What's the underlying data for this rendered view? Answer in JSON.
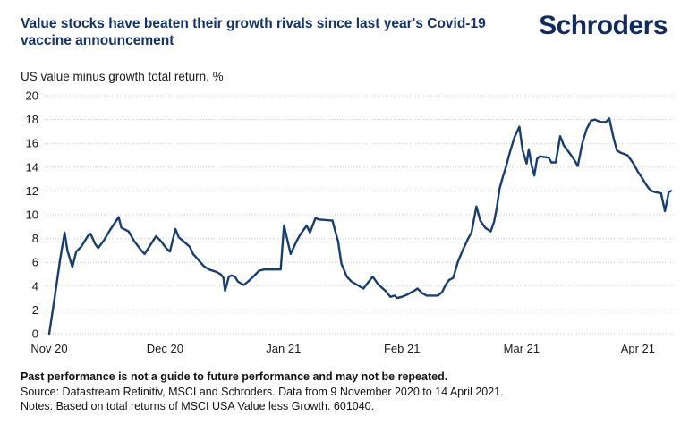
{
  "header": {
    "title": "Value stocks have beaten their growth rivals since last year's Covid-19 vaccine announcement",
    "logo_text": "Schroders"
  },
  "chart": {
    "subtitle": "US value minus growth total return, %"
  },
  "footer": {
    "line1": "Past performance is not a guide to future performance and may not be repeated.",
    "line2": "Source: Datastream Refinitiv, MSCI and Schroders. Data from 9 November 2020 to 14 April 2021.",
    "line3": "Notes: Based on total returns of MSCI USA Value less Growth. 601040."
  },
  "colors": {
    "brand_navy": "#143264",
    "line": "#173e6e",
    "grid": "#c9c9c9",
    "tick_text": "#1a1a1a"
  },
  "chart_data": {
    "type": "line",
    "title": "Value stocks have beaten their growth rivals since last year's Covid-19 vaccine announcement",
    "ylabel": "US value minus growth total return, %",
    "xlabel": "",
    "x_unit": "trading days since 9 November 2020 (values estimated from plot)",
    "ylim": [
      0,
      20
    ],
    "y_ticks": [
      0,
      2,
      4,
      6,
      8,
      10,
      12,
      14,
      16,
      18,
      20
    ],
    "x_ticks": [
      {
        "day": 0,
        "label": "Nov 20"
      },
      {
        "day": 21,
        "label": "Dec 20"
      },
      {
        "day": 42.5,
        "label": "Jan 21"
      },
      {
        "day": 64,
        "label": "Feb 21"
      },
      {
        "day": 85.7,
        "label": "Mar 21"
      },
      {
        "day": 106.8,
        "label": "Apr 21"
      }
    ],
    "grid": "horizontal-dotted",
    "legend": "none",
    "series": [
      {
        "name": "US value minus growth total return, %",
        "color": "#173e6e",
        "points": [
          [
            0,
            0
          ],
          [
            1,
            3.1
          ],
          [
            2,
            6.3
          ],
          [
            2.8,
            8.5
          ],
          [
            3.3,
            7.0
          ],
          [
            4.2,
            5.6
          ],
          [
            4.9,
            6.9
          ],
          [
            5.8,
            7.3
          ],
          [
            7,
            8.2
          ],
          [
            7.5,
            8.4
          ],
          [
            8.4,
            7.5
          ],
          [
            8.9,
            7.2
          ],
          [
            10,
            7.9
          ],
          [
            11,
            8.7
          ],
          [
            12.6,
            9.8
          ],
          [
            13.1,
            8.9
          ],
          [
            14.4,
            8.6
          ],
          [
            15.4,
            7.8
          ],
          [
            16.7,
            7.0
          ],
          [
            17.3,
            6.7
          ],
          [
            18,
            7.2
          ],
          [
            19.4,
            8.2
          ],
          [
            20.4,
            7.7
          ],
          [
            21.2,
            7.2
          ],
          [
            21.9,
            6.9
          ],
          [
            22.9,
            8.8
          ],
          [
            23.5,
            8.1
          ],
          [
            24.3,
            7.8
          ],
          [
            25.5,
            7.3
          ],
          [
            26.1,
            6.7
          ],
          [
            26.7,
            6.4
          ],
          [
            28,
            5.7
          ],
          [
            29,
            5.4
          ],
          [
            30.3,
            5.2
          ],
          [
            31.1,
            5.0
          ],
          [
            31.6,
            4.7
          ],
          [
            31.9,
            3.6
          ],
          [
            32.6,
            4.8
          ],
          [
            33.1,
            4.9
          ],
          [
            33.7,
            4.8
          ],
          [
            34.2,
            4.4
          ],
          [
            34.9,
            4.2
          ],
          [
            35.3,
            4.1
          ],
          [
            36.1,
            4.4
          ],
          [
            36.8,
            4.7
          ],
          [
            38.1,
            5.3
          ],
          [
            39,
            5.4
          ],
          [
            42,
            5.4
          ],
          [
            42.6,
            9.1
          ],
          [
            43.8,
            6.7
          ],
          [
            44.9,
            7.8
          ],
          [
            45.5,
            8.3
          ],
          [
            46.7,
            9.1
          ],
          [
            47.3,
            8.5
          ],
          [
            48.3,
            9.7
          ],
          [
            49,
            9.6
          ],
          [
            51.4,
            9.5
          ],
          [
            51.9,
            8.6
          ],
          [
            52.4,
            7.8
          ],
          [
            53,
            5.9
          ],
          [
            54,
            4.8
          ],
          [
            54.8,
            4.4
          ],
          [
            55.9,
            4.1
          ],
          [
            57,
            3.8
          ],
          [
            58,
            4.4
          ],
          [
            58.7,
            4.8
          ],
          [
            59.6,
            4.2
          ],
          [
            60.3,
            3.9
          ],
          [
            61,
            3.6
          ],
          [
            61.9,
            3.1
          ],
          [
            62.7,
            3.2
          ],
          [
            63.1,
            3.0
          ],
          [
            64,
            3.1
          ],
          [
            65,
            3.3
          ],
          [
            66.2,
            3.6
          ],
          [
            66.8,
            3.8
          ],
          [
            67.7,
            3.4
          ],
          [
            68.5,
            3.2
          ],
          [
            70.5,
            3.2
          ],
          [
            71.3,
            3.5
          ],
          [
            71.9,
            4.1
          ],
          [
            72.5,
            4.5
          ],
          [
            73.3,
            4.7
          ],
          [
            74.1,
            6.0
          ],
          [
            75,
            7.0
          ],
          [
            76,
            8.0
          ],
          [
            76.6,
            8.5
          ],
          [
            77.5,
            10.7
          ],
          [
            78.2,
            9.5
          ],
          [
            79.1,
            8.9
          ],
          [
            80.1,
            8.6
          ],
          [
            80.7,
            9.4
          ],
          [
            81.2,
            10.6
          ],
          [
            81.7,
            12.2
          ],
          [
            82.3,
            13.2
          ],
          [
            82.8,
            13.9
          ],
          [
            83.6,
            15.3
          ],
          [
            84.4,
            16.5
          ],
          [
            85.3,
            17.4
          ],
          [
            85.9,
            15.4
          ],
          [
            86.6,
            14.3
          ],
          [
            87,
            15.5
          ],
          [
            87.5,
            14.2
          ],
          [
            88,
            13.3
          ],
          [
            88.5,
            14.7
          ],
          [
            89,
            14.9
          ],
          [
            90.6,
            14.8
          ],
          [
            91.1,
            14.4
          ],
          [
            91.9,
            14.4
          ],
          [
            92.7,
            16.6
          ],
          [
            93.4,
            15.8
          ],
          [
            94.2,
            15.3
          ],
          [
            95,
            14.8
          ],
          [
            95.9,
            14.1
          ],
          [
            96.7,
            16.0
          ],
          [
            97.5,
            17.2
          ],
          [
            98.3,
            17.9
          ],
          [
            99,
            18.0
          ],
          [
            100,
            17.8
          ],
          [
            101,
            17.8
          ],
          [
            101.6,
            18.1
          ],
          [
            102.4,
            16.4
          ],
          [
            103,
            15.4
          ],
          [
            103.7,
            15.2
          ],
          [
            104.9,
            15.0
          ],
          [
            106,
            14.3
          ],
          [
            106.8,
            13.6
          ],
          [
            107.4,
            13.2
          ],
          [
            108.2,
            12.6
          ],
          [
            108.8,
            12.2
          ],
          [
            109.3,
            12.0
          ],
          [
            109.9,
            11.9
          ],
          [
            111,
            11.8
          ],
          [
            111.7,
            10.3
          ],
          [
            112.4,
            11.9
          ],
          [
            112.8,
            12.0
          ]
        ]
      }
    ]
  }
}
